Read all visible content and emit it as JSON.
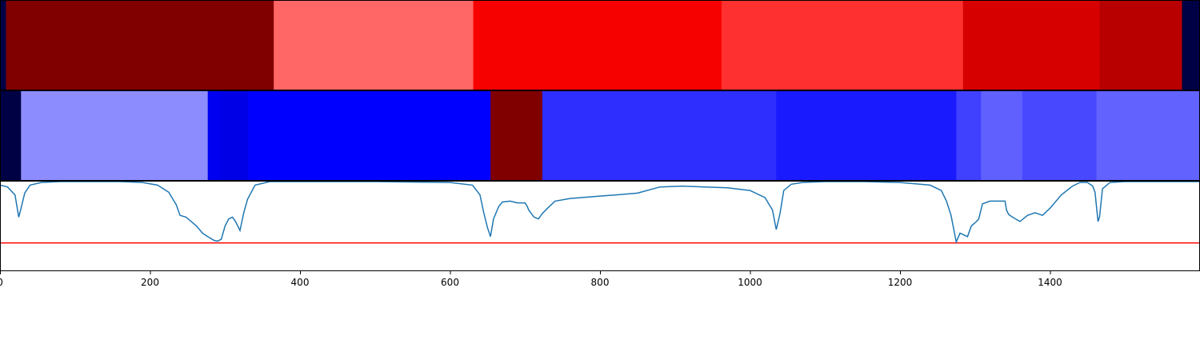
{
  "chart_data": [
    {
      "type": "heatmap",
      "panel": "top-strip",
      "xlim": [
        0,
        1600
      ],
      "segments": [
        {
          "start": 0,
          "end": 8,
          "color": "#000044"
        },
        {
          "start": 8,
          "end": 365,
          "color": "#800000"
        },
        {
          "start": 365,
          "end": 631,
          "color": "#ff6666"
        },
        {
          "start": 631,
          "end": 962,
          "color": "#f70000"
        },
        {
          "start": 962,
          "end": 1284,
          "color": "#ff3030"
        },
        {
          "start": 1284,
          "end": 1466,
          "color": "#d60000"
        },
        {
          "start": 1466,
          "end": 1576,
          "color": "#b80000"
        },
        {
          "start": 1576,
          "end": 1600,
          "color": "#000044"
        }
      ]
    },
    {
      "type": "heatmap",
      "panel": "middle-strip",
      "xlim": [
        0,
        1600
      ],
      "segments": [
        {
          "start": 0,
          "end": 28,
          "color": "#000044"
        },
        {
          "start": 28,
          "end": 277,
          "color": "#8c8cff"
        },
        {
          "start": 277,
          "end": 294,
          "color": "#0000f0"
        },
        {
          "start": 294,
          "end": 331,
          "color": "#0000e6"
        },
        {
          "start": 331,
          "end": 654,
          "color": "#0000ff"
        },
        {
          "start": 654,
          "end": 723,
          "color": "#800000"
        },
        {
          "start": 723,
          "end": 1035,
          "color": "#2e2eff"
        },
        {
          "start": 1035,
          "end": 1275,
          "color": "#1a1aff"
        },
        {
          "start": 1275,
          "end": 1308,
          "color": "#4040ff"
        },
        {
          "start": 1308,
          "end": 1363,
          "color": "#6060ff"
        },
        {
          "start": 1363,
          "end": 1462,
          "color": "#4848ff"
        },
        {
          "start": 1462,
          "end": 1600,
          "color": "#6262ff"
        }
      ]
    },
    {
      "type": "line",
      "panel": "bottom-plot",
      "xlim": [
        0,
        1600
      ],
      "ylim": [
        0,
        1
      ],
      "grid": false,
      "threshold": {
        "value": 0.31,
        "color": "#ff0000"
      },
      "series": [
        {
          "color": "#1f77b4",
          "x": [
            0,
            10,
            20,
            25,
            28,
            33,
            40,
            55,
            80,
            120,
            160,
            190,
            210,
            225,
            235,
            240,
            248,
            255,
            262,
            270,
            277,
            285,
            290,
            295,
            300,
            305,
            310,
            314,
            320,
            325,
            330,
            340,
            360,
            400,
            500,
            600,
            630,
            640,
            645,
            650,
            654,
            658,
            665,
            670,
            680,
            690,
            700,
            703,
            705,
            712,
            718,
            723,
            730,
            740,
            760,
            790,
            820,
            850,
            880,
            910,
            940,
            970,
            1000,
            1020,
            1030,
            1035,
            1040,
            1045,
            1055,
            1070,
            1100,
            1150,
            1200,
            1240,
            1255,
            1262,
            1268,
            1272,
            1275,
            1280,
            1290,
            1295,
            1302,
            1305,
            1310,
            1320,
            1340,
            1342,
            1345,
            1350,
            1360,
            1370,
            1380,
            1390,
            1395,
            1400,
            1415,
            1430,
            1440,
            1450,
            1457,
            1460,
            1464,
            1466,
            1470,
            1480,
            1500,
            1550,
            1600
          ],
          "y": [
            0.96,
            0.94,
            0.85,
            0.6,
            0.7,
            0.87,
            0.96,
            0.99,
            1.0,
            1.0,
            1.0,
            0.99,
            0.96,
            0.88,
            0.74,
            0.62,
            0.6,
            0.55,
            0.5,
            0.42,
            0.38,
            0.34,
            0.33,
            0.35,
            0.5,
            0.58,
            0.6,
            0.55,
            0.45,
            0.65,
            0.8,
            0.96,
            1.0,
            1.0,
            1.0,
            0.99,
            0.96,
            0.85,
            0.65,
            0.48,
            0.38,
            0.58,
            0.72,
            0.77,
            0.78,
            0.76,
            0.76,
            0.72,
            0.68,
            0.6,
            0.58,
            0.64,
            0.7,
            0.78,
            0.81,
            0.83,
            0.85,
            0.87,
            0.94,
            0.95,
            0.94,
            0.93,
            0.9,
            0.82,
            0.68,
            0.46,
            0.64,
            0.9,
            0.97,
            0.99,
            1.0,
            1.0,
            0.99,
            0.96,
            0.9,
            0.78,
            0.62,
            0.45,
            0.32,
            0.42,
            0.38,
            0.5,
            0.55,
            0.58,
            0.75,
            0.78,
            0.78,
            0.68,
            0.63,
            0.6,
            0.55,
            0.62,
            0.65,
            0.62,
            0.66,
            0.7,
            0.85,
            0.95,
            0.99,
            0.99,
            0.95,
            0.88,
            0.55,
            0.6,
            0.92,
            0.99,
            1.0,
            1.0,
            1.0
          ]
        }
      ],
      "xticks": [
        {
          "value": 0,
          "label": "0"
        },
        {
          "value": 200,
          "label": "200"
        },
        {
          "value": 400,
          "label": "400"
        },
        {
          "value": 600,
          "label": "600"
        },
        {
          "value": 800,
          "label": "800"
        },
        {
          "value": 1000,
          "label": "1000"
        },
        {
          "value": 1200,
          "label": "1200"
        },
        {
          "value": 1400,
          "label": "1400"
        }
      ]
    }
  ]
}
